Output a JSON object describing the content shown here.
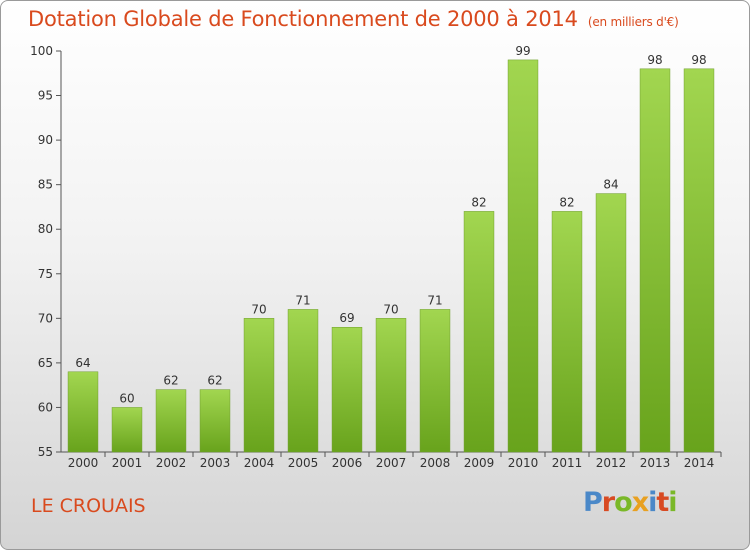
{
  "title": "Dotation Globale de Fonctionnement de 2000 à 2014",
  "title_unit": "(en milliers d'€)",
  "place": "LE CROUAIS",
  "logo": {
    "letters": [
      "P",
      "r",
      "o",
      "x",
      "i",
      "t",
      "i"
    ],
    "colors": [
      "#4a88c8",
      "#d84a22",
      "#7ab828",
      "#e8a020",
      "#4a88c8",
      "#d84a22",
      "#7ab828"
    ]
  },
  "colors": {
    "accent": "#d94a1e",
    "bar_top": "#a2d650",
    "bar_bottom": "#68a31c"
  },
  "chart_data": {
    "type": "bar",
    "title": "Dotation Globale de Fonctionnement de 2000 à 2014",
    "subtitle": "(en milliers d'€)",
    "categories": [
      "2000",
      "2001",
      "2002",
      "2003",
      "2004",
      "2005",
      "2006",
      "2007",
      "2008",
      "2009",
      "2010",
      "2011",
      "2012",
      "2013",
      "2014"
    ],
    "values": [
      64,
      60,
      62,
      62,
      70,
      71,
      69,
      70,
      71,
      82,
      99,
      82,
      84,
      98,
      98
    ],
    "ylim": [
      55,
      100
    ],
    "yticks": [
      55,
      60,
      65,
      70,
      75,
      80,
      85,
      90,
      95,
      100
    ],
    "xlabel": "",
    "ylabel": "",
    "grid": false,
    "data_labels": true
  }
}
